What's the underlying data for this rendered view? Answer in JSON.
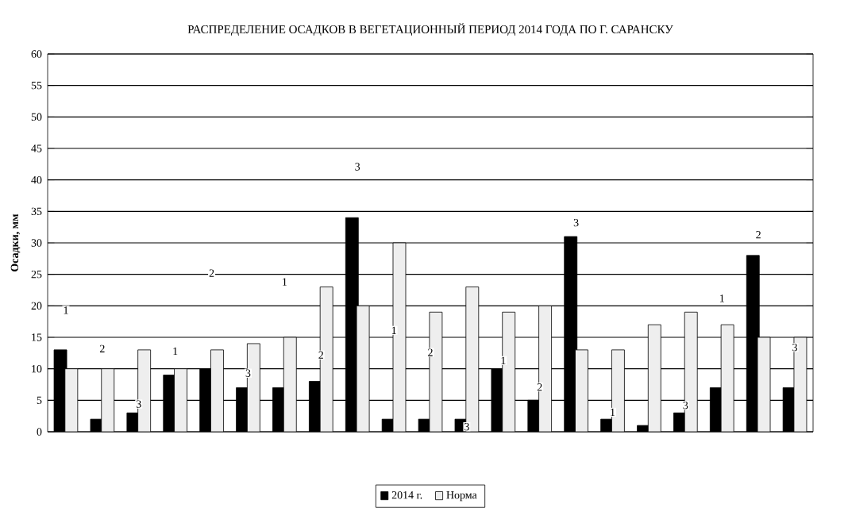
{
  "chart_data": {
    "type": "bar",
    "title": "РАСПРЕДЕЛЕНИЕ ОСАДКОВ В ВЕГЕТАЦИОННЫЙ ПЕРИОД 2014 ГОДА ПО Г. САРАНСКУ",
    "ylabel": "Осадки, мм",
    "categories": [
      null,
      null,
      null,
      null,
      null,
      null,
      null,
      null,
      null,
      null,
      null,
      null,
      null,
      null,
      null,
      null,
      null,
      null,
      null,
      null,
      null
    ],
    "series": [
      {
        "name": "2014 г.",
        "color": "#000000",
        "values": [
          13,
          2,
          3,
          9,
          10,
          7,
          7,
          8,
          34,
          2,
          2,
          2,
          10,
          5,
          31,
          2,
          1,
          3,
          7,
          28,
          7
        ]
      },
      {
        "name": "Норма",
        "color": "#eeeeee",
        "values": [
          10,
          10,
          13,
          10,
          13,
          14,
          15,
          23,
          20,
          30,
          19,
          23,
          19,
          20,
          13,
          13,
          17,
          19,
          17,
          15,
          15
        ]
      }
    ],
    "annotations": [
      {
        "text": "1",
        "y": 19.3
      },
      {
        "text": "2",
        "y": 13.2
      },
      {
        "text": "3",
        "y": 4.4
      },
      {
        "text": "1",
        "y": 12.8
      },
      {
        "text": "2",
        "y": 25.2
      },
      {
        "text": "3",
        "y": 9.3
      },
      {
        "text": "1",
        "y": 23.8
      },
      {
        "text": "2",
        "y": 12.2
      },
      {
        "text": "3",
        "y": 42.1
      },
      {
        "text": "1",
        "y": 16.1
      },
      {
        "text": "2",
        "y": 12.6
      },
      {
        "text": "3",
        "y": 0.8
      },
      {
        "text": "1",
        "y": 11.3
      },
      {
        "text": "2",
        "y": 7.1
      },
      {
        "text": "3",
        "y": 33.2
      },
      {
        "text": "1",
        "y": 3.1
      },
      null,
      {
        "text": "3",
        "y": 4.2
      },
      {
        "text": "1",
        "y": 21.2
      },
      {
        "text": "2",
        "y": 31.3
      },
      {
        "text": "3",
        "y": 13.4
      }
    ],
    "ylim": [
      0,
      60
    ],
    "yticks": [
      0,
      5,
      10,
      15,
      20,
      25,
      30,
      35,
      40,
      45,
      50,
      55,
      60
    ],
    "grid": "y",
    "legend": "bottom"
  }
}
